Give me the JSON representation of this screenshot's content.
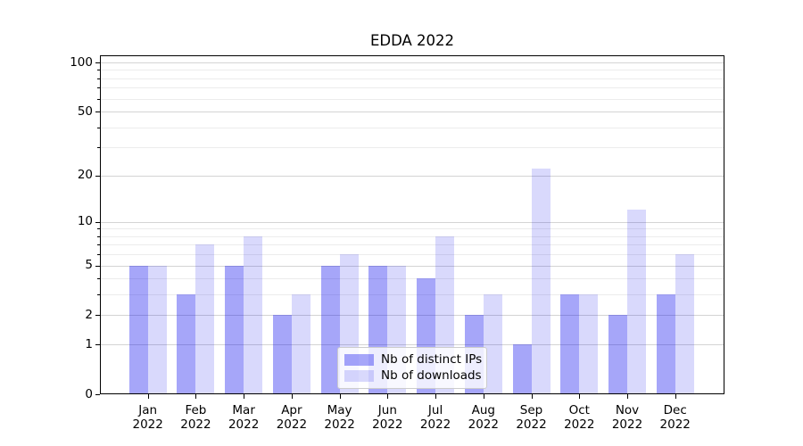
{
  "title": "EDDA 2022",
  "chart_data": {
    "type": "bar",
    "title": "EDDA 2022",
    "categories": [
      "Jan 2022",
      "Feb 2022",
      "Mar 2022",
      "Apr 2022",
      "May 2022",
      "Jun 2022",
      "Jul 2022",
      "Aug 2022",
      "Sep 2022",
      "Oct 2022",
      "Nov 2022",
      "Dec 2022"
    ],
    "series": [
      {
        "name": "Nb of distinct IPs",
        "color": "rgba(0,0,238,0.35)",
        "values": [
          5,
          3,
          5,
          2,
          5,
          5,
          4,
          2,
          1,
          3,
          2,
          3
        ]
      },
      {
        "name": "Nb of downloads",
        "color": "rgba(0,0,238,0.15)",
        "values": [
          5,
          7,
          8,
          3,
          6,
          5,
          8,
          3,
          22,
          3,
          12,
          6
        ]
      }
    ],
    "xlabel": "",
    "ylabel": "",
    "yscale": "log1p",
    "ylim": [
      0,
      110
    ],
    "yticks": [
      0,
      1,
      2,
      5,
      10,
      20,
      50,
      100
    ],
    "yticks_minor": [
      3,
      4,
      6,
      7,
      8,
      9,
      30,
      40,
      60,
      70,
      80,
      90
    ],
    "grid": true,
    "legend_position": "lower center",
    "colors": {
      "grid_major": "#d4d4d4",
      "grid_minor": "#ececec",
      "spine": "#000000",
      "text": "#000000",
      "legend_border": "#cccccc",
      "legend_bg": "rgba(255,255,255,0.8)"
    }
  }
}
